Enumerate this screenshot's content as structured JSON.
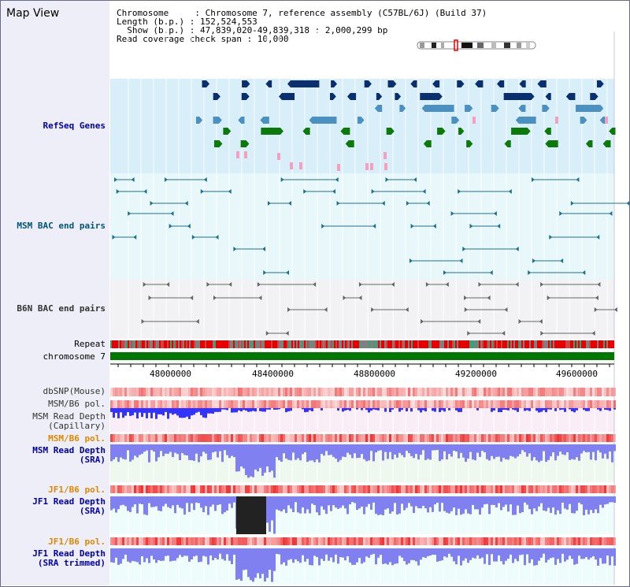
{
  "title": "Map View",
  "info": {
    "line1": "Chromosome     : Chromosome 7, reference assembly (C57BL/6J) (Build 37)",
    "line2": "Length (b.p.) : 152,524,553",
    "line3": "  Show (b.p.) : 47,839,020-49,839,318 : 2,000,299 bp",
    "line4": "Read coverage check span : 10,000"
  },
  "tracks": {
    "refseq": "RefSeq Genes",
    "msm_bac": "MSM BAC end pairs",
    "b6n_bac": "B6N BAC end pairs",
    "repeat": "Repeat",
    "chromosome": "chromosome 7",
    "dbsnp": "dbSNP(Mouse)",
    "msm_pol1": "MSM/B6 pol.",
    "msm_depth_cap1": "MSM Read Depth",
    "msm_depth_cap2": "(Capillary)",
    "msm_pol2": "MSM/B6 pol.",
    "msm_depth_sra1": "MSM Read Depth",
    "msm_depth_sra2": "(SRA)",
    "jf1_pol1": "JF1/B6 pol.",
    "jf1_depth1": "JF1 Read Depth",
    "jf1_depth2": "(SRA)",
    "jf1_pol2": "JF1/B6 pol.",
    "jf1_trim1": "JF1 Read Depth",
    "jf1_trim2": "(SRA trimmed)"
  },
  "axis": {
    "ticks": [
      "48000000",
      "48400000",
      "48800000",
      "49200000",
      "49600000"
    ]
  },
  "colors": {
    "refseq_dark": "#0a2f6e",
    "refseq_mid": "#4a90c0",
    "refseq_green": "#0b7a0b",
    "refseq_pink": "#f4a0c0",
    "bac_teal": "#1e7090",
    "depth_blue": "#3333ff",
    "depth_light": "#8080f0",
    "pol_red": "#ee3333",
    "chrom_green": "#007700"
  }
}
